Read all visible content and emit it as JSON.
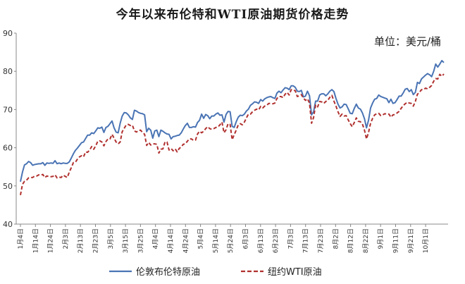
{
  "chart_data": {
    "type": "line",
    "title": "今年以来布伦特和WTI原油期货价格走势",
    "unit": "单位：美元/桶",
    "ylim": [
      40,
      90
    ],
    "yticks": [
      40,
      50,
      60,
      70,
      80,
      90
    ],
    "grid": false,
    "legend_position": "bottom",
    "x_tick_labels": [
      "1月4日",
      "1月14日",
      "1月24日",
      "2月3日",
      "2月13日",
      "2月23日",
      "3月5日",
      "3月15日",
      "3月25日",
      "4月4日",
      "4月14日",
      "4月24日",
      "5月4日",
      "5月14日",
      "5月24日",
      "6月3日",
      "6月13日",
      "6月23日",
      "7月3日",
      "7月13日",
      "7月23日",
      "8月2日",
      "8月12日",
      "8月22日",
      "9月1日",
      "9月11日",
      "9月21日",
      "10月1日"
    ],
    "series": [
      {
        "name": "伦敦布伦特原油",
        "color": "#4a74b4",
        "style": "solid",
        "values": [
          51.1,
          53.6,
          55.5,
          55.8,
          56.4,
          56.1,
          55.4,
          55.6,
          55.7,
          55.8,
          55.8,
          56.1,
          55.4,
          56.0,
          55.9,
          56.0,
          55.9,
          56.6,
          55.8,
          56.0,
          55.8,
          56.0,
          55.9,
          55.9,
          56.3,
          57.3,
          58.4,
          59.3,
          59.9,
          60.6,
          61.3,
          61.5,
          62.4,
          63.3,
          63.3,
          63.9,
          63.7,
          64.4,
          65.2,
          65.1,
          65.4,
          64.0,
          65.3,
          65.6,
          66.3,
          67.0,
          65.2,
          64.1,
          63.9,
          66.4,
          68.3,
          69.2,
          69.1,
          68.6,
          67.8,
          67.4,
          69.8,
          69.6,
          69.2,
          69.0,
          68.9,
          68.6,
          64.2,
          65.1,
          64.6,
          62.5,
          64.4,
          64.6,
          62.9,
          64.6,
          64.3,
          63.9,
          63.6,
          63.5,
          62.3,
          62.9,
          63.0,
          63.2,
          63.3,
          63.9,
          64.9,
          65.8,
          66.4,
          65.3,
          65.3,
          65.5,
          65.4,
          66.6,
          67.2,
          68.8,
          67.7,
          68.7,
          68.4,
          67.6,
          68.3,
          68.3,
          68.8,
          69.1,
          68.5,
          68.6,
          66.7,
          68.7,
          69.5,
          69.4,
          65.6,
          65.3,
          66.8,
          68.0,
          68.5,
          68.4,
          68.8,
          69.6,
          70.1,
          71.1,
          71.5,
          72.0,
          71.9,
          71.6,
          72.6,
          72.2,
          72.8,
          73.1,
          73.3,
          73.4,
          73.1,
          72.9,
          74.3,
          74.8,
          74.4,
          75.1,
          75.7,
          75.6,
          75.2,
          76.2,
          76.2,
          75.8,
          74.8,
          74.7,
          75.0,
          73.3,
          73.5,
          74.8,
          73.6,
          68.6,
          69.4,
          72.2,
          72.2,
          73.8,
          74.1,
          74.1,
          73.6,
          74.1,
          74.8,
          75.2,
          74.7,
          72.9,
          71.4,
          70.4,
          70.7,
          71.4,
          71.3,
          70.2,
          69.0,
          68.9,
          70.3,
          71.4,
          70.4,
          70.1,
          69.1,
          67.6,
          65.2,
          67.2,
          70.4,
          71.7,
          72.7,
          72.9,
          73.8,
          73.4,
          73.2,
          73.0,
          72.8,
          71.8,
          72.7,
          71.6,
          71.8,
          72.6,
          73.5,
          73.5,
          74.3,
          75.3,
          75.5,
          74.7,
          75.2,
          73.9,
          74.5,
          77.1,
          76.8,
          78.0,
          78.5,
          79.0,
          79.4,
          79.1,
          78.6,
          80.0,
          81.9,
          81.1,
          81.9,
          82.8,
          82.3
        ]
      },
      {
        "name": "纽约WTI原油",
        "color": "#b0302e",
        "style": "dashed",
        "values": [
          47.6,
          50.4,
          51.2,
          51.5,
          52.1,
          52.2,
          52.2,
          52.6,
          52.6,
          52.9,
          52.8,
          53.0,
          52.2,
          52.6,
          52.4,
          52.4,
          52.5,
          52.9,
          52.1,
          52.3,
          52.2,
          52.8,
          52.5,
          52.2,
          53.6,
          54.8,
          56.1,
          56.2,
          57.0,
          57.6,
          57.9,
          57.6,
          58.9,
          58.8,
          59.4,
          60.3,
          59.6,
          60.5,
          61.7,
          61.8,
          61.5,
          60.5,
          61.6,
          62.3,
          62.3,
          63.5,
          62.5,
          61.5,
          61.0,
          61.5,
          64.2,
          65.1,
          66.0,
          66.1,
          65.8,
          65.9,
          64.4,
          64.1,
          64.5,
          64.6,
          64.0,
          63.5,
          60.6,
          61.4,
          60.7,
          61.0,
          61.0,
          60.9,
          58.6,
          59.6,
          59.7,
          61.5,
          61.5,
          59.4,
          59.8,
          59.2,
          59.7,
          58.9,
          59.8,
          60.2,
          60.9,
          61.0,
          61.7,
          62.3,
          62.3,
          61.9,
          62.0,
          63.6,
          64.3,
          63.9,
          64.3,
          65.0,
          65.5,
          65.0,
          64.8,
          65.0,
          65.3,
          65.4,
          66.0,
          66.7,
          63.9,
          64.7,
          66.3,
          66.1,
          62.1,
          63.4,
          64.6,
          66.0,
          66.3,
          66.0,
          66.7,
          67.8,
          68.8,
          68.8,
          69.4,
          69.8,
          70.1,
          69.9,
          70.8,
          70.4,
          70.9,
          71.1,
          71.6,
          71.6,
          71.5,
          71.7,
          72.9,
          73.4,
          73.4,
          73.1,
          74.0,
          74.5,
          73.8,
          75.2,
          75.2,
          74.9,
          73.4,
          73.6,
          73.9,
          73.0,
          72.4,
          72.8,
          71.7,
          66.4,
          67.9,
          71.2,
          70.7,
          72.1,
          72.0,
          71.6,
          72.1,
          72.4,
          73.2,
          73.7,
          72.2,
          70.9,
          69.4,
          68.2,
          68.8,
          68.3,
          68.4,
          67.3,
          66.3,
          65.5,
          66.6,
          67.8,
          66.9,
          66.8,
          66.2,
          64.6,
          62.3,
          64.0,
          66.4,
          67.7,
          68.6,
          68.9,
          69.0,
          68.4,
          68.6,
          68.9,
          68.8,
          68.8,
          68.0,
          68.6,
          68.7,
          69.1,
          69.5,
          70.3,
          71.0,
          71.5,
          71.9,
          71.7,
          71.6,
          70.9,
          72.1,
          74.0,
          74.5,
          75.2,
          75.2,
          75.6,
          75.4,
          75.8,
          76.3,
          77.4,
          78.1,
          78.0,
          79.2,
          78.7,
          79.3
        ]
      }
    ]
  }
}
